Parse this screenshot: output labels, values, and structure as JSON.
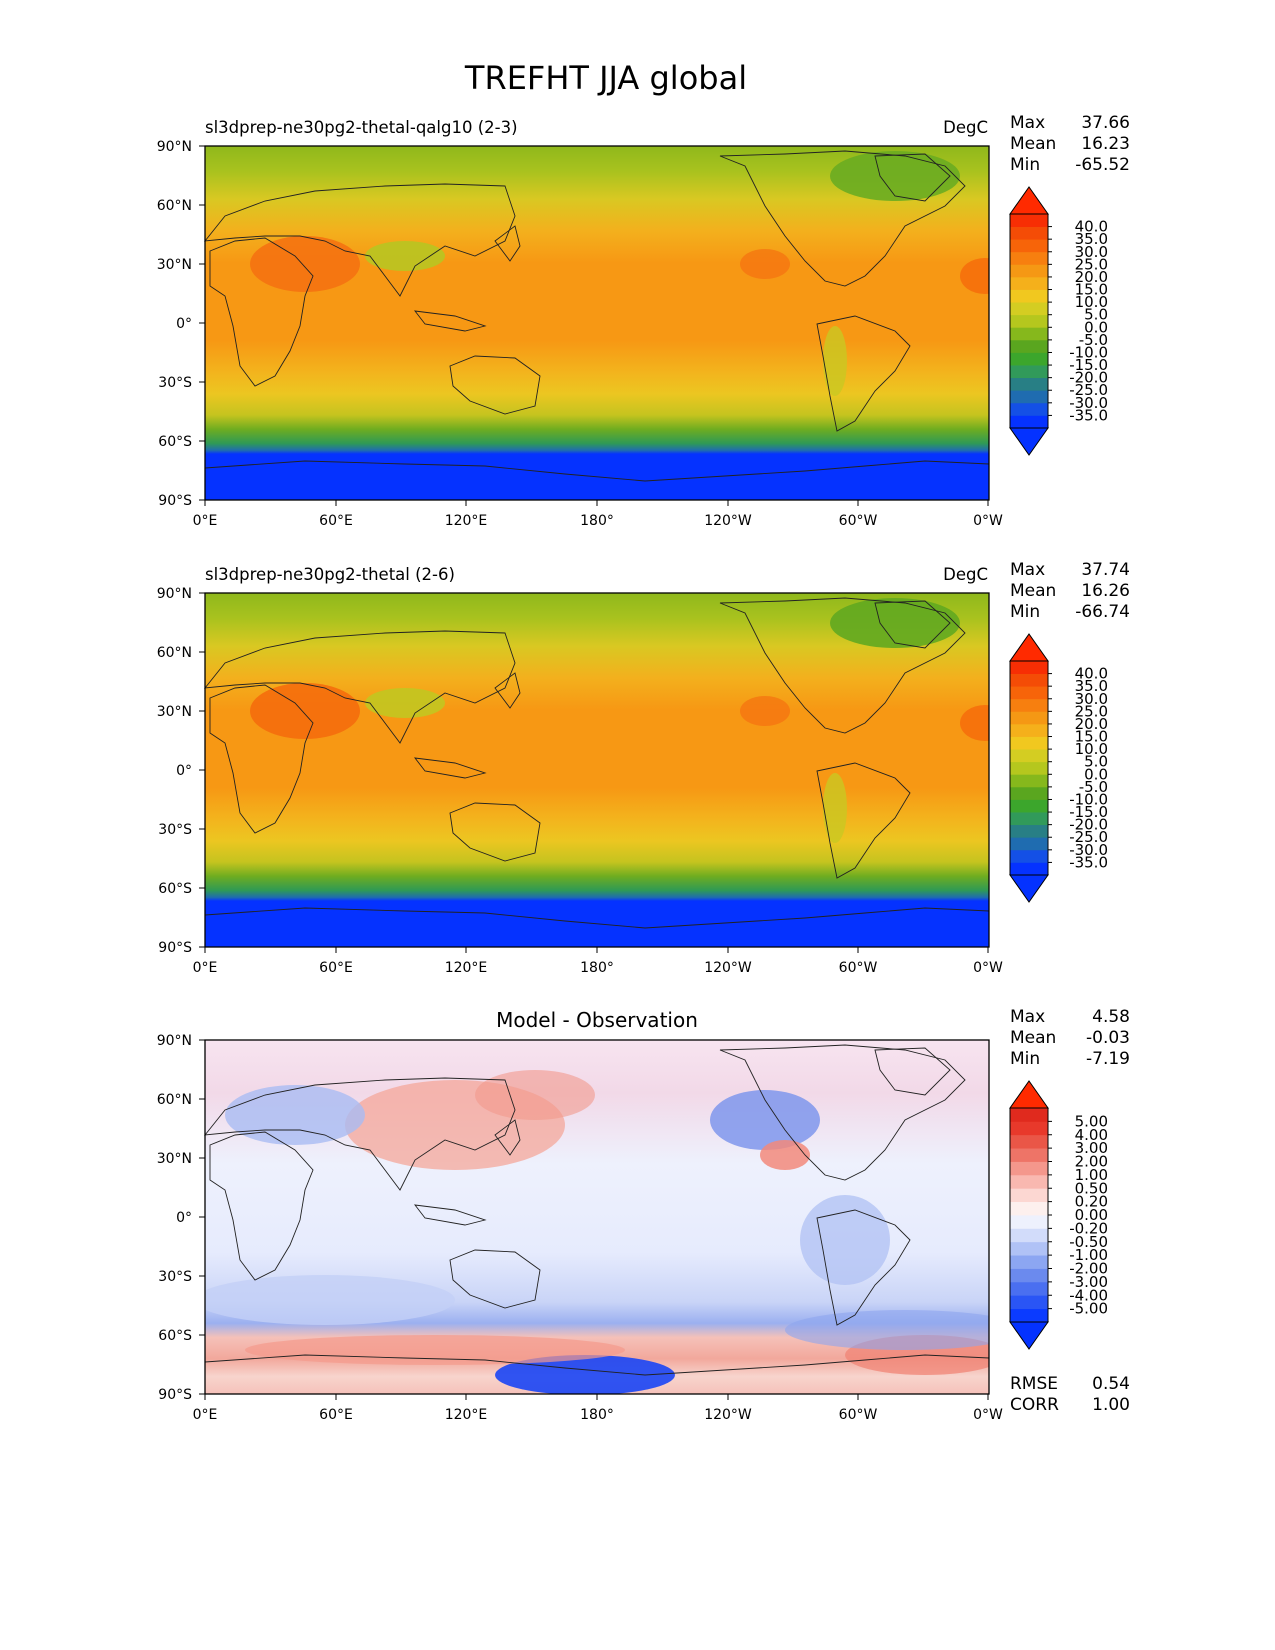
{
  "figure": {
    "title": "TREFHT JJA global"
  },
  "axes": {
    "lat_ticks": [
      "90°N",
      "60°N",
      "30°N",
      "0°",
      "30°S",
      "60°S",
      "90°S"
    ],
    "lon_ticks": [
      "0°E",
      "60°E",
      "120°E",
      "180°",
      "120°W",
      "60°W",
      "0°W"
    ]
  },
  "panels": [
    {
      "id": "test",
      "title_left": "sl3dprep-ne30pg2-thetal-qalg10 (2-3)",
      "title_center": "",
      "units": "DegC",
      "stats": [
        {
          "label": "Max",
          "value": "37.66"
        },
        {
          "label": "Mean",
          "value": "16.23"
        },
        {
          "label": "Min",
          "value": "-65.52"
        }
      ],
      "colorbar": {
        "labels": [
          "40.0",
          "35.0",
          "30.0",
          "25.0",
          "20.0",
          "15.0",
          "10.0",
          "5.0",
          "0.0",
          "-5.0",
          "-10.0",
          "-15.0",
          "-20.0",
          "-25.0",
          "-30.0",
          "-35.0"
        ],
        "colors": [
          "#0532ff",
          "#1450e6",
          "#1f6cb0",
          "#287f85",
          "#319a5a",
          "#3ca62c",
          "#5aa61f",
          "#86b81c",
          "#b5c71e",
          "#d4cd22",
          "#f1c81f",
          "#f5b01b",
          "#f59814",
          "#f77f0f",
          "#f76409",
          "#f44c06",
          "#f72e04"
        ],
        "extend_max_color": "#ff2a00",
        "extend_min_color": "#0432ff"
      },
      "footer_stats": []
    },
    {
      "id": "reference",
      "title_left": "sl3dprep-ne30pg2-thetal (2-6)",
      "title_center": "",
      "units": "DegC",
      "stats": [
        {
          "label": "Max",
          "value": "37.74"
        },
        {
          "label": "Mean",
          "value": "16.26"
        },
        {
          "label": "Min",
          "value": "-66.74"
        }
      ],
      "colorbar": {
        "labels": [
          "40.0",
          "35.0",
          "30.0",
          "25.0",
          "20.0",
          "15.0",
          "10.0",
          "5.0",
          "0.0",
          "-5.0",
          "-10.0",
          "-15.0",
          "-20.0",
          "-25.0",
          "-30.0",
          "-35.0"
        ],
        "colors": [
          "#0532ff",
          "#1450e6",
          "#1f6cb0",
          "#287f85",
          "#319a5a",
          "#3ca62c",
          "#5aa61f",
          "#86b81c",
          "#b5c71e",
          "#d4cd22",
          "#f1c81f",
          "#f5b01b",
          "#f59814",
          "#f77f0f",
          "#f76409",
          "#f44c06",
          "#f72e04"
        ],
        "extend_max_color": "#ff2a00",
        "extend_min_color": "#0432ff"
      },
      "footer_stats": []
    },
    {
      "id": "difference",
      "title_left": "",
      "title_center": "Model - Observation",
      "units": "",
      "stats": [
        {
          "label": "Max",
          "value": "4.58"
        },
        {
          "label": "Mean",
          "value": "-0.03"
        },
        {
          "label": "Min",
          "value": "-7.19"
        }
      ],
      "colorbar": {
        "labels": [
          "5.00",
          "4.00",
          "3.00",
          "2.00",
          "1.00",
          "0.50",
          "0.20",
          "0.00",
          "-0.20",
          "-0.50",
          "-1.00",
          "-2.00",
          "-3.00",
          "-4.00",
          "-5.00"
        ],
        "colors": [
          "#0b3bff",
          "#2a55f5",
          "#4a6ff0",
          "#6b8aee",
          "#8ca6f2",
          "#b0c2f6",
          "#d2dcfa",
          "#eef1fd",
          "#fdf0ee",
          "#fcd7d2",
          "#f9b8b0",
          "#f4978c",
          "#ee7467",
          "#ea5647",
          "#e8392b",
          "#e02a1e"
        ],
        "extend_max_color": "#ff2a00",
        "extend_min_color": "#0432ff"
      },
      "footer_stats": [
        {
          "label": "RMSE",
          "value": "0.54"
        },
        {
          "label": "CORR",
          "value": "1.00"
        }
      ]
    }
  ]
}
